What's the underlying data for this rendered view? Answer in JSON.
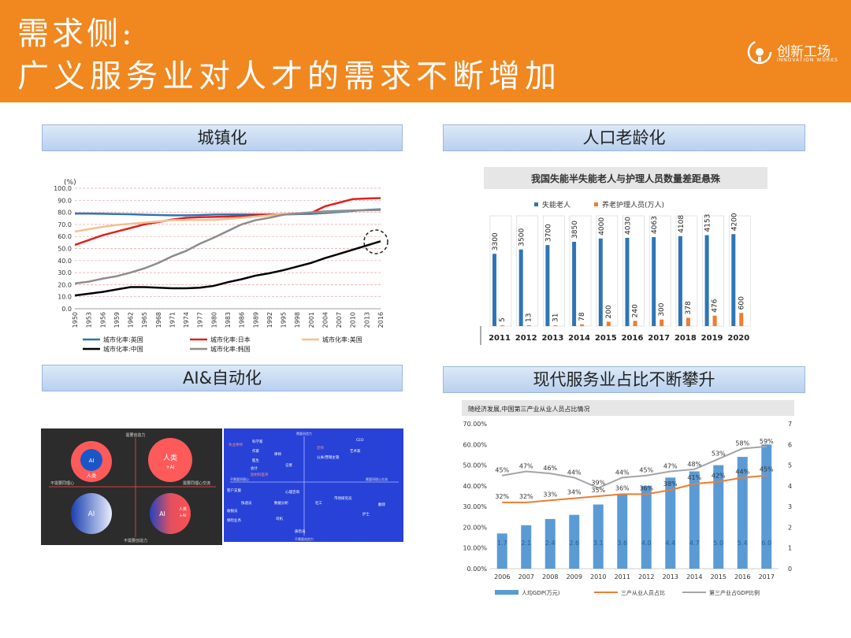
{
  "header": {
    "title_line1": "需求侧:",
    "title_line2": "广义服务业对人才的需求不断增加",
    "logo_text": "创新工场",
    "logo_sub": "INNOVATION WORKS",
    "colors": {
      "bar": "#f0871f",
      "text": "#ffffff"
    }
  },
  "sections": {
    "urbanization": "城镇化",
    "aging": "人口老龄化",
    "ai": "AI&自动化",
    "service": "现代服务业占比不断攀升"
  },
  "chart_data": [
    {
      "id": "urbanization",
      "type": "line",
      "ylabel": "(%)",
      "ylim": [
        0,
        100
      ],
      "yticks": [
        "0.0",
        "10.0",
        "20.0",
        "30.0",
        "40.0",
        "50.0",
        "60.0",
        "70.0",
        "80.0",
        "90.0",
        "100.0"
      ],
      "x": [
        "1950",
        "1953",
        "1956",
        "1959",
        "1962",
        "1965",
        "1968",
        "1971",
        "1974",
        "1977",
        "1980",
        "1983",
        "1986",
        "1989",
        "1992",
        "1995",
        "1998",
        "2001",
        "2004",
        "2007",
        "2010",
        "2013",
        "2016"
      ],
      "series": [
        {
          "name": "城市化率:英国",
          "color": "#2e75b6",
          "values": [
            79,
            79,
            78.8,
            78.6,
            78.4,
            78,
            77.8,
            77.5,
            77.5,
            77.8,
            78.2,
            78.3,
            78.3,
            78.3,
            78.3,
            78.3,
            78.5,
            78.8,
            79.5,
            80.2,
            81.2,
            82,
            82.5
          ]
        },
        {
          "name": "城市化率:日本",
          "color": "#e02020",
          "values": [
            53,
            57,
            61,
            64,
            67,
            70,
            72,
            74,
            75.5,
            76,
            76.2,
            76.5,
            77,
            77.5,
            78,
            78.5,
            79,
            79.5,
            85,
            88,
            91,
            91.5,
            91.8
          ]
        },
        {
          "name": "城市化率:美国",
          "color": "#f5c08e",
          "values": [
            64,
            66,
            68,
            69.5,
            70.5,
            71.5,
            72.5,
            73.5,
            73.7,
            73.7,
            73.7,
            74.5,
            75.5,
            76.5,
            77.5,
            78.5,
            79,
            80,
            80.5,
            81,
            81.5,
            81.7,
            81.8
          ]
        },
        {
          "name": "城市化率:中国",
          "color": "#000000",
          "values": [
            11,
            12.5,
            14,
            16,
            18,
            18,
            17.5,
            17,
            17,
            17.5,
            19,
            22,
            24.5,
            27.5,
            29.5,
            32,
            35,
            38,
            42,
            45.5,
            49,
            52.5,
            56
          ]
        },
        {
          "name": "城市化率:韩国",
          "color": "#8c8c8c",
          "values": [
            21,
            22.5,
            25,
            27,
            30,
            33.5,
            38,
            43.5,
            48,
            54,
            59,
            64.5,
            70,
            73.5,
            75.5,
            78,
            79,
            80,
            80.8,
            81.2,
            81.5,
            81.8,
            82
          ]
        }
      ],
      "legend": "bottom"
    },
    {
      "id": "aging",
      "type": "bar",
      "title": "我国失能半失能老人与护理人员数量差距悬殊",
      "categories": [
        "2011",
        "2012",
        "2013",
        "2014",
        "2015",
        "2016",
        "2017",
        "2018",
        "2019",
        "2020"
      ],
      "series": [
        {
          "name": "失能老人",
          "color": "#2e75b6",
          "values": [
            3300,
            3500,
            3700,
            3850,
            4000,
            4030,
            4063,
            4108,
            4153,
            4200
          ]
        },
        {
          "name": "养老护理人员(万人)",
          "color": "#ed7d31",
          "values": [
            5,
            13,
            31,
            78,
            200,
            240,
            300,
            378,
            476,
            600
          ]
        }
      ],
      "labels_a": [
        "3300",
        "3500",
        "3700",
        "3850",
        "4000",
        "4030",
        "4063",
        "4108",
        "4153",
        "4200"
      ],
      "labels_b": [
        "5",
        "13",
        "31",
        "78",
        "200",
        "240",
        "300",
        "378",
        "476",
        "600"
      ],
      "legend": "top"
    },
    {
      "id": "service",
      "type": "bar",
      "title": "随经济发展,中国第三产业从业人员占比情况",
      "categories": [
        "2006",
        "2007",
        "2008",
        "2009",
        "2010",
        "2011",
        "2012",
        "2013",
        "2014",
        "2015",
        "2016",
        "2017"
      ],
      "yticks_left": [
        "0.00%",
        "10.00%",
        "20.00%",
        "30.00%",
        "40.00%",
        "50.00%",
        "60.00%",
        "70.00%"
      ],
      "yticks_right": [
        "0",
        "1",
        "2",
        "3",
        "4",
        "5",
        "6",
        "7"
      ],
      "series": [
        {
          "name": "人均GDP(万元)",
          "color": "#5b9bd5",
          "values": [
            1.7,
            2.1,
            2.4,
            2.6,
            3.1,
            3.6,
            4.0,
            4.4,
            4.7,
            5.0,
            5.4,
            6.0
          ],
          "labels": [
            "1.7",
            "2.1",
            "2.4",
            "2.6",
            "3.1",
            "3.6",
            "4.0",
            "4.4",
            "4.7",
            "5.0",
            "5.4",
            "6.0"
          ]
        },
        {
          "name": "三产从业人员占比",
          "color": "#ed7d31",
          "values": [
            32,
            32,
            33,
            34,
            35,
            36,
            36,
            38,
            41,
            42,
            44,
            45
          ],
          "labels": [
            "32%",
            "32%",
            "33%",
            "34%",
            "35%",
            "36%",
            "36%",
            "38%",
            "41%",
            "42%",
            "44%",
            "45%"
          ]
        },
        {
          "name": "第三产业占GDP比例",
          "color": "#a5a5a5",
          "values": [
            45,
            47,
            46,
            44,
            39,
            44,
            45,
            47,
            48,
            53,
            58,
            59
          ],
          "labels": [
            "45%",
            "47%",
            "46%",
            "44%",
            "39%",
            "44%",
            "45%",
            "47%",
            "48%",
            "53%",
            "58%",
            "59%"
          ]
        }
      ],
      "legend": "bottom"
    }
  ],
  "ai_panel": {
    "left": {
      "top_axis": "需要创造力",
      "bottom_axis": "不需要创造力",
      "left_axis": "不需要同理心",
      "right_axis": "需要同理心交流",
      "q1": "AI",
      "q1_sub": "人类",
      "q2": "人类",
      "q2_sub": "+AI",
      "q3": "AI",
      "q4_a": "AI",
      "q4_b": "人类",
      "q4_c": "+AI"
    },
    "right": {
      "top_axis": "需要创造力",
      "bottom_axis": "不需要创造力",
      "left_axis": "不需要同理心",
      "right_axis": "需要同理心交流",
      "jobs": [
        "CEO",
        "艺术家",
        "失业律师",
        "老师",
        "公关/营销主管",
        "科学家",
        "作家",
        "医生",
        "律师",
        "客户支服",
        "心理咨询",
        "收银员",
        "翻译",
        "快递员",
        "市场研究员",
        "数据分析",
        "社工",
        "保险业务",
        "司机",
        "放射科医师",
        "护士",
        "质检员",
        "记者",
        "会计"
      ]
    }
  }
}
